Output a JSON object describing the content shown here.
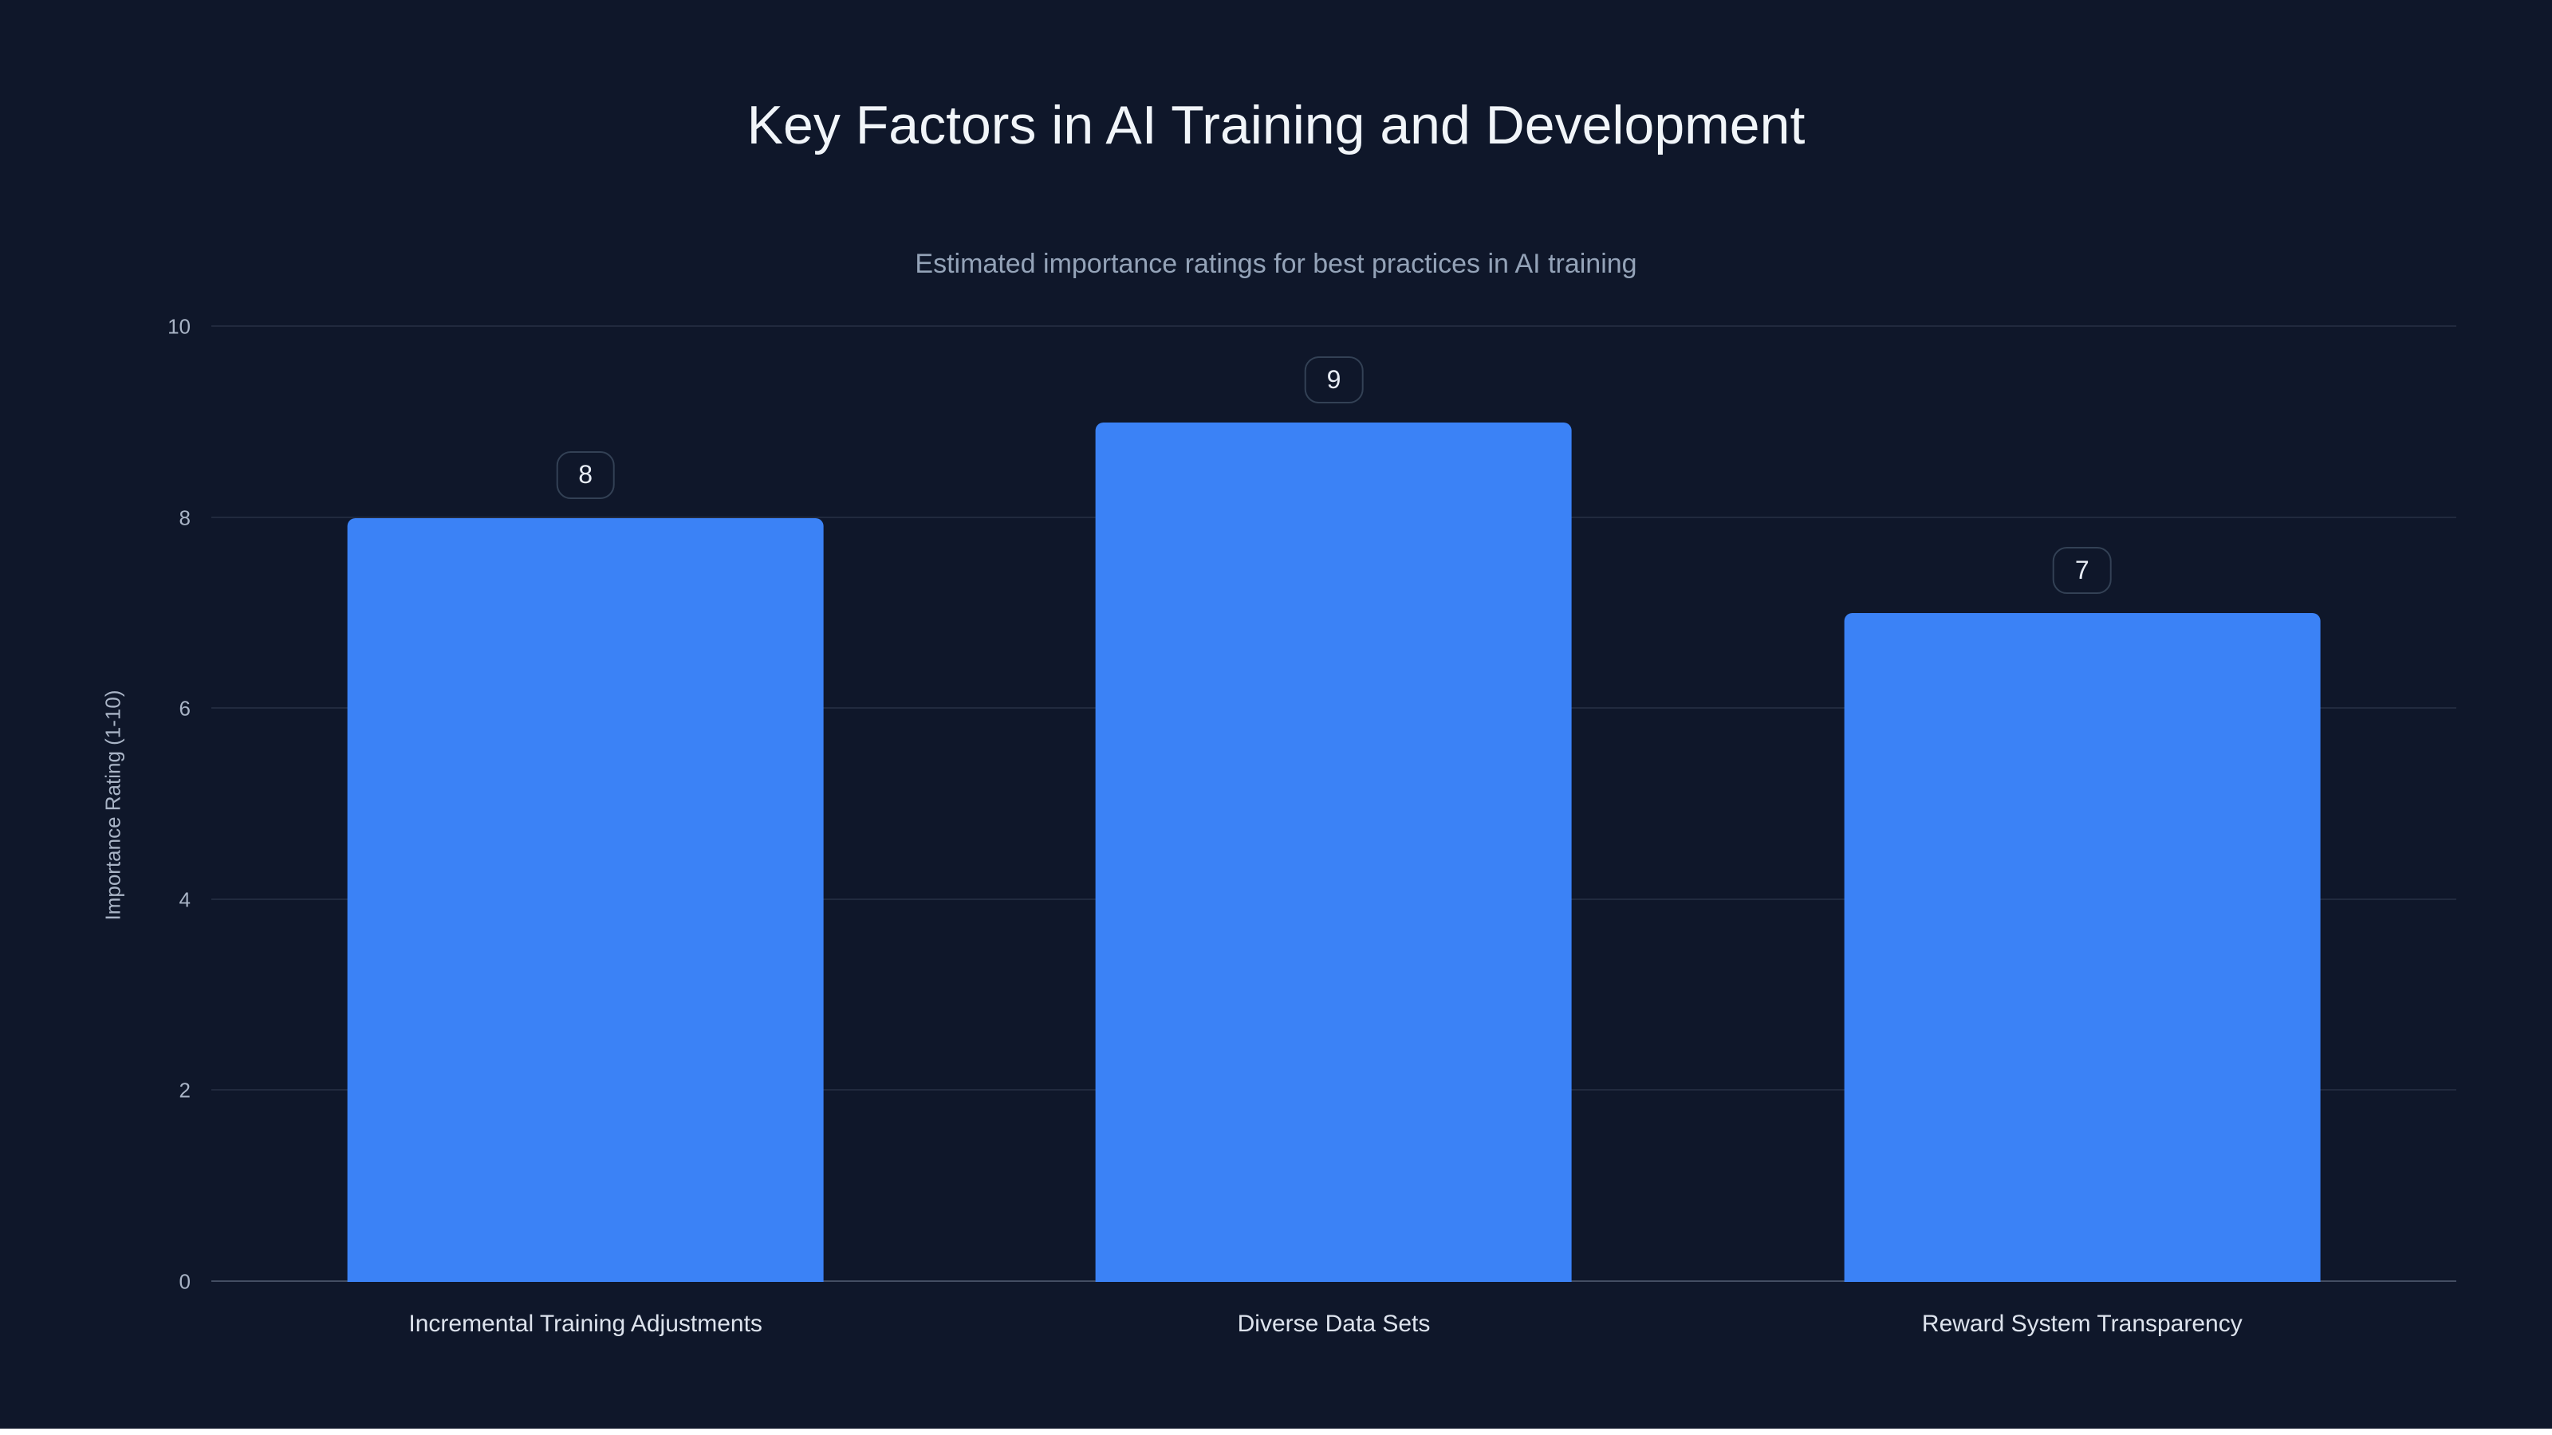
{
  "page": {
    "background": "#0f172a"
  },
  "chart_data": {
    "type": "bar",
    "title": "Key Factors in AI Training and Development",
    "subtitle": "Estimated importance ratings for best practices in AI training",
    "categories": [
      "Incremental Training Adjustments",
      "Diverse Data Sets",
      "Reward System Transparency"
    ],
    "values": [
      8,
      9,
      7
    ],
    "data_labels": [
      "8",
      "9",
      "7"
    ],
    "xlabel": "",
    "ylabel": "Importance Rating (1-10)",
    "ylim": [
      0,
      10
    ],
    "yticks": [
      0,
      2,
      4,
      6,
      8,
      10
    ],
    "grid": true,
    "legend": false,
    "colors": {
      "background": "#0f172a",
      "bar": "#3b82f6",
      "gridline": "rgba(148,163,184,0.14)",
      "axis_line": "rgba(148,163,184,0.40)",
      "title_text": "#f1f5f9",
      "subtitle_text": "#94a3b8",
      "tick_text": "#a9b4c6",
      "category_text": "#dde3ed",
      "badge_border": "#334155",
      "badge_text": "#e8edf5"
    }
  }
}
